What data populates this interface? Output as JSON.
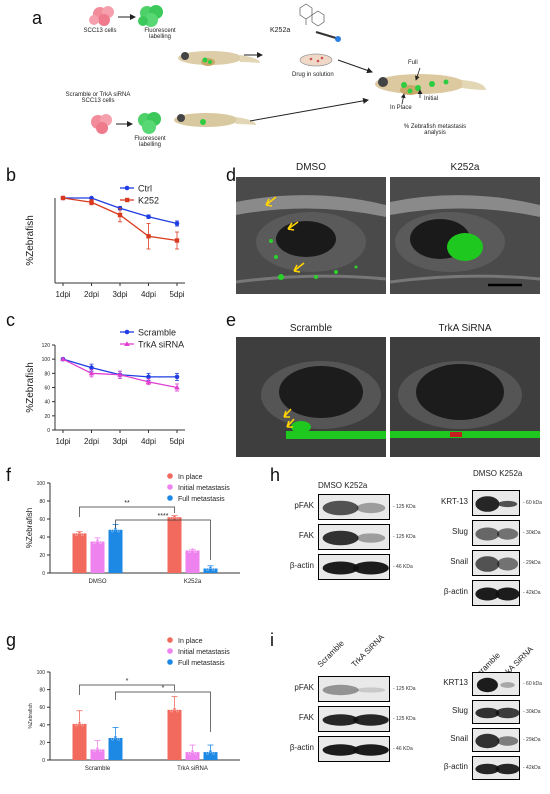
{
  "panels": {
    "a": "a",
    "b": "b",
    "c": "c",
    "d": "d",
    "e": "e",
    "f": "f",
    "g": "g",
    "h": "h",
    "i": "i"
  },
  "schematic": {
    "scc13_cells": "SCC13 cells",
    "fluorescent_labelling_1": "Fluorescent\nlabelling",
    "k252a": "K252a",
    "drug_in_solution": "Drug in solution",
    "scramble_trka": "Scramble or TrkA siRNA\nSCC13 cells",
    "fluorescent_labelling_2": "Fluorescent\nlabelling",
    "full": "Full",
    "initial": "Initial",
    "in_place": "In Place",
    "metastasis_analysis": "% Zebrafish metastasis\nanalysis"
  },
  "images": {
    "d_left": "DMSO",
    "d_right": "K252a",
    "e_left": "Scramble",
    "e_right": "TrkA SiRNA"
  },
  "colors": {
    "blue": "#1f3de0",
    "red": "#d93a1f",
    "pink": "#e040d0",
    "bar_red": "#f26a5e",
    "bar_pink": "#ee82ee",
    "bar_blue": "#1e88e5",
    "green_fluor": "#22dd22"
  },
  "blots_h": {
    "header_left": "DMSO K252a",
    "header_right": "DMSO K252a",
    "rows_left": [
      {
        "label": "pFAK",
        "kda": "- 125 KDa"
      },
      {
        "label": "FAK",
        "kda": "- 125 KDa"
      },
      {
        "label": "β-actin",
        "kda": "- 46 KDa"
      }
    ],
    "rows_right": [
      {
        "label": "KRT-13",
        "kda": "- 60 kDa"
      },
      {
        "label": "Slug",
        "kda": "- 30kDa"
      },
      {
        "label": "Snail",
        "kda": "- 29kDa"
      },
      {
        "label": "β-actin",
        "kda": "- 42kDa"
      }
    ]
  },
  "blots_i": {
    "lane1": "Scramble",
    "lane2": "TrkA SiRNA",
    "lane1_r": "Scramble",
    "lane2_r": "TrkA SiRNA",
    "rows_left": [
      {
        "label": "pFAK",
        "kda": "- 125 KDa"
      },
      {
        "label": "FAK",
        "kda": "- 125 KDa"
      },
      {
        "label": "β-actin",
        "kda": "- 46 KDa"
      }
    ],
    "rows_right": [
      {
        "label": "KRT13",
        "kda": "- 60 kDa"
      },
      {
        "label": "Slug",
        "kda": "- 30kDa"
      },
      {
        "label": "Snail",
        "kda": "- 29kDa"
      },
      {
        "label": "β-actin",
        "kda": "- 42kDa"
      }
    ]
  },
  "chart_data": [
    {
      "id": "b",
      "type": "line",
      "ylabel": "%Zebrafish",
      "categories": [
        "1dpi",
        "2dpi",
        "3dpi",
        "4dpi",
        "5dpi"
      ],
      "ylim": [
        0,
        100
      ],
      "yticks": [],
      "series": [
        {
          "name": "Ctrl",
          "color": "#1f3de0",
          "values": [
            100,
            100,
            88,
            78,
            70
          ],
          "err": [
            0,
            0,
            2,
            2,
            3
          ]
        },
        {
          "name": "K252",
          "color": "#d93a1f",
          "values": [
            100,
            95,
            80,
            55,
            50
          ],
          "err": [
            0,
            3,
            8,
            15,
            10
          ]
        }
      ]
    },
    {
      "id": "c",
      "type": "line",
      "ylabel": "%Zebrafish",
      "categories": [
        "1dpi",
        "2dpi",
        "3dpi",
        "4dpi",
        "5dpi"
      ],
      "ylim": [
        0,
        120
      ],
      "yticks": [
        "0",
        "20",
        "40",
        "60",
        "80",
        "100",
        "120"
      ],
      "series": [
        {
          "name": "Scramble",
          "color": "#1f3de0",
          "values": [
            100,
            88,
            78,
            75,
            75
          ],
          "err": [
            0,
            5,
            5,
            5,
            5
          ]
        },
        {
          "name": "TrkA siRNA",
          "color": "#e040d0",
          "values": [
            100,
            80,
            78,
            68,
            60
          ],
          "err": [
            0,
            5,
            5,
            4,
            5
          ]
        }
      ]
    },
    {
      "id": "f",
      "type": "bar",
      "ylabel": "%Zebrafish",
      "categories": [
        "DMSO",
        "K252a"
      ],
      "ylim": [
        0,
        100
      ],
      "yticks": [
        "0",
        "20",
        "40",
        "60",
        "80",
        "100"
      ],
      "series": [
        {
          "name": "In place",
          "color": "#f26a5e",
          "values": [
            44,
            62
          ],
          "err": [
            2,
            2
          ]
        },
        {
          "name": "Initial metastasis",
          "color": "#ee82ee",
          "values": [
            35,
            25
          ],
          "err": [
            4,
            1
          ]
        },
        {
          "name": "Full metastasis",
          "color": "#1e88e5",
          "values": [
            48,
            5
          ],
          "err": [
            6,
            3
          ]
        }
      ],
      "sig": [
        {
          "label": "**"
        },
        {
          "label": "****"
        }
      ]
    },
    {
      "id": "g",
      "type": "bar",
      "ylabel": "%Zebrafish",
      "categories": [
        "Scramble",
        "TrkA siRNA"
      ],
      "ylim": [
        0,
        100
      ],
      "yticks": [
        "0",
        "20",
        "40",
        "60",
        "80",
        "100"
      ],
      "series": [
        {
          "name": "In place",
          "color": "#f26a5e",
          "values": [
            41,
            57
          ],
          "err": [
            15,
            15
          ]
        },
        {
          "name": "Initial metastasis",
          "color": "#ee82ee",
          "values": [
            12,
            9
          ],
          "err": [
            10,
            8
          ]
        },
        {
          "name": "Full metastasis",
          "color": "#1e88e5",
          "values": [
            25,
            9
          ],
          "err": [
            12,
            8
          ]
        }
      ],
      "sig": [
        {
          "label": "*"
        },
        {
          "label": "*"
        }
      ]
    }
  ]
}
